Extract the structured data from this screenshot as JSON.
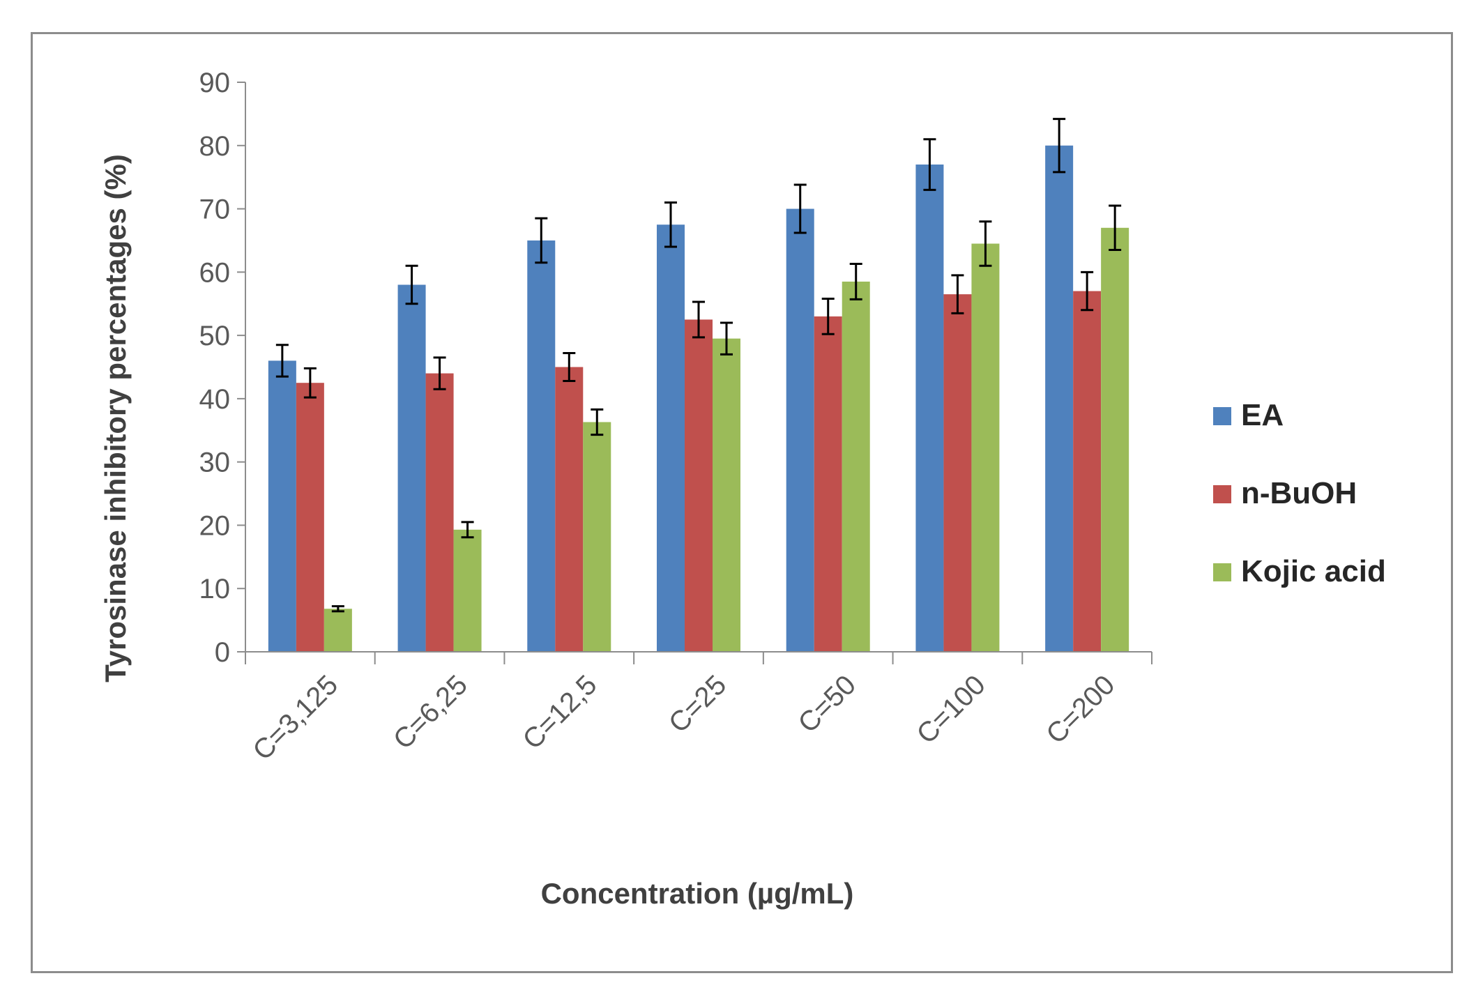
{
  "chart_data": {
    "type": "bar",
    "title": "",
    "xlabel": "Concentration (µg/mL)",
    "ylabel": "Tyrosinase inhibitory percentages (%)",
    "ylim": [
      0,
      90
    ],
    "yticks": [
      0,
      10,
      20,
      30,
      40,
      50,
      60,
      70,
      80,
      90
    ],
    "grid": false,
    "legend_position": "right",
    "categories": [
      "C=3,125",
      "C=6,25",
      "C=12,5",
      "C=25",
      "C=50",
      "C=100",
      "C=200"
    ],
    "series": [
      {
        "name": "EA",
        "color": "#4f81bd",
        "values": [
          46,
          58,
          65,
          67.5,
          70,
          77,
          80
        ],
        "errors": [
          2.5,
          3,
          3.5,
          3.5,
          3.8,
          4,
          4.2
        ]
      },
      {
        "name": "n-BuOH",
        "color": "#c0504d",
        "values": [
          42.5,
          44,
          45,
          52.5,
          53,
          56.5,
          57
        ],
        "errors": [
          2.3,
          2.5,
          2.2,
          2.8,
          2.8,
          3,
          3
        ]
      },
      {
        "name": "Kojic acid",
        "color": "#9bbb59",
        "values": [
          6.8,
          19.3,
          36.3,
          49.5,
          58.5,
          64.5,
          67
        ],
        "errors": [
          0.4,
          1.2,
          2,
          2.5,
          2.8,
          3.5,
          3.5
        ]
      }
    ]
  }
}
